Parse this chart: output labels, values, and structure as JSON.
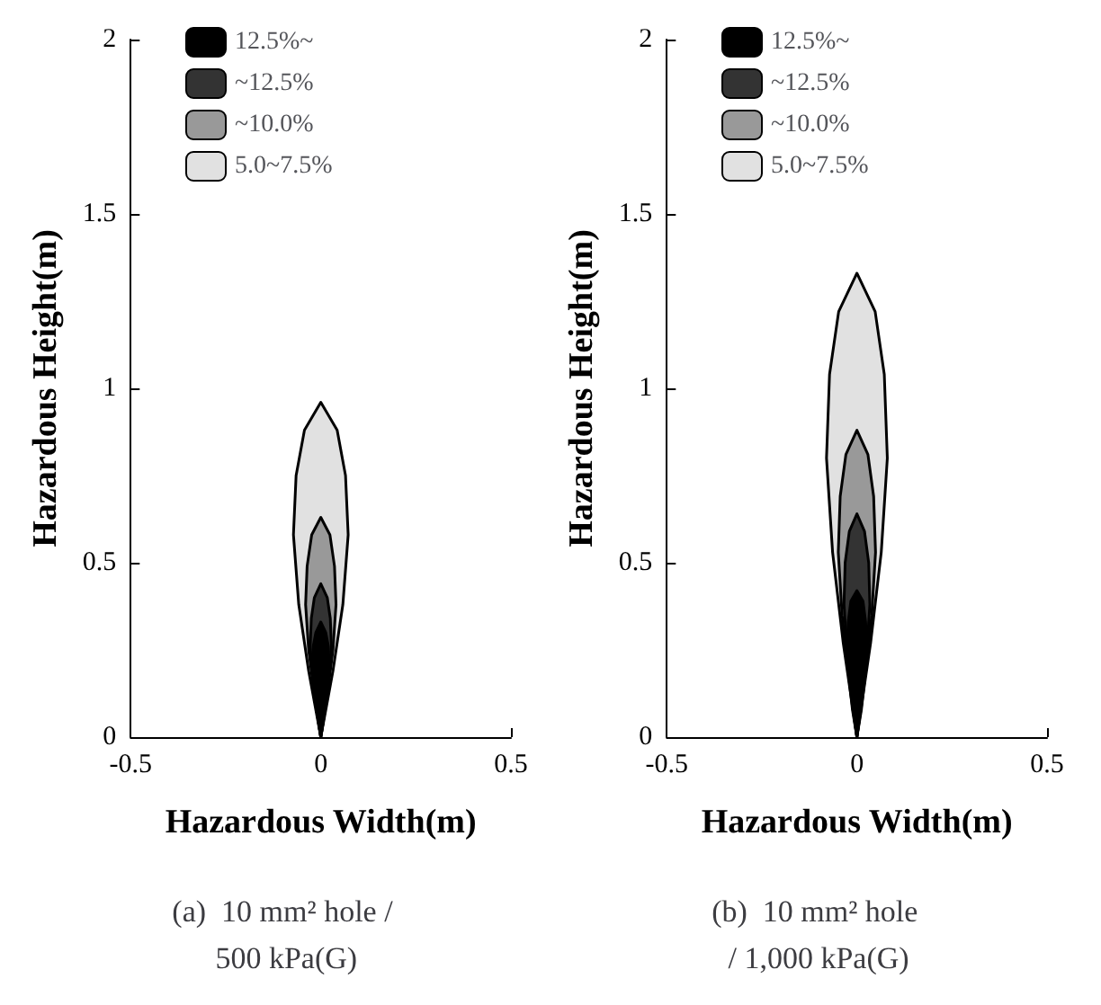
{
  "chart_data": [
    {
      "type": "area",
      "title": "(a)  10 mm² hole / 500 kPa(G)",
      "xlabel": "Hazardous Width(m)",
      "ylabel": "Hazardous Height(m)",
      "xlim": [
        -0.5,
        0.5
      ],
      "xticks": [
        -0.5,
        0,
        0.5
      ],
      "ylim": [
        0,
        2
      ],
      "yticks": [
        0,
        0.5,
        1,
        1.5,
        2
      ],
      "grid": false,
      "legend": "top",
      "series": [
        {
          "name": "12.5%~",
          "color": "#000000",
          "x": [
            0,
            0.01,
            0.018,
            0.022,
            0.02,
            0.013,
            0,
            -0.013,
            -0.02,
            -0.022,
            -0.018,
            -0.01,
            0
          ],
          "values": [
            0,
            0.07,
            0.13,
            0.2,
            0.26,
            0.3,
            0.33,
            0.3,
            0.26,
            0.2,
            0.13,
            0.07,
            0
          ]
        },
        {
          "name": "~12.5%",
          "color": "#333333",
          "x": [
            0,
            0.013,
            0.022,
            0.028,
            0.025,
            0.017,
            0,
            -0.017,
            -0.025,
            -0.028,
            -0.022,
            -0.013,
            0
          ],
          "values": [
            0,
            0.09,
            0.18,
            0.26,
            0.34,
            0.4,
            0.44,
            0.4,
            0.34,
            0.26,
            0.18,
            0.09,
            0
          ]
        },
        {
          "name": "~10.0%",
          "color": "#999999",
          "x": [
            0,
            0.018,
            0.032,
            0.04,
            0.036,
            0.024,
            0,
            -0.024,
            -0.036,
            -0.04,
            -0.032,
            -0.018,
            0
          ],
          "values": [
            0,
            0.13,
            0.25,
            0.38,
            0.49,
            0.58,
            0.63,
            0.58,
            0.49,
            0.38,
            0.25,
            0.13,
            0
          ]
        },
        {
          "name": "5.0~7.5%",
          "color": "#e1e1e1",
          "x": [
            0,
            0.032,
            0.058,
            0.072,
            0.065,
            0.043,
            0,
            -0.043,
            -0.065,
            -0.072,
            -0.058,
            -0.032,
            0
          ],
          "values": [
            0,
            0.19,
            0.38,
            0.58,
            0.75,
            0.88,
            0.96,
            0.88,
            0.75,
            0.58,
            0.38,
            0.19,
            0
          ]
        }
      ]
    },
    {
      "type": "area",
      "title": "(b)  10 mm² hole / 1,000 kPa(G)",
      "xlabel": "Hazardous Width(m)",
      "ylabel": "Hazardous Height(m)",
      "xlim": [
        -0.5,
        0.5
      ],
      "xticks": [
        -0.5,
        0,
        0.5
      ],
      "ylim": [
        0,
        2
      ],
      "yticks": [
        0,
        0.5,
        1,
        1.5,
        2
      ],
      "grid": false,
      "legend": "top",
      "series": [
        {
          "name": "12.5%~",
          "color": "#000000",
          "x": [
            0,
            0.012,
            0.021,
            0.026,
            0.023,
            0.016,
            0,
            -0.016,
            -0.023,
            -0.026,
            -0.021,
            -0.012,
            0
          ],
          "values": [
            0,
            0.08,
            0.17,
            0.25,
            0.33,
            0.39,
            0.42,
            0.39,
            0.33,
            0.25,
            0.17,
            0.08,
            0
          ]
        },
        {
          "name": "~12.5%",
          "color": "#333333",
          "x": [
            0,
            0.015,
            0.027,
            0.034,
            0.031,
            0.02,
            0,
            -0.02,
            -0.031,
            -0.034,
            -0.027,
            -0.015,
            0
          ],
          "values": [
            0,
            0.13,
            0.26,
            0.38,
            0.5,
            0.59,
            0.64,
            0.59,
            0.5,
            0.38,
            0.26,
            0.13,
            0
          ]
        },
        {
          "name": "~10.0%",
          "color": "#999999",
          "x": [
            0,
            0.022,
            0.039,
            0.049,
            0.044,
            0.029,
            0,
            -0.029,
            -0.044,
            -0.049,
            -0.039,
            -0.022,
            0
          ],
          "values": [
            0,
            0.18,
            0.35,
            0.53,
            0.69,
            0.81,
            0.88,
            0.81,
            0.69,
            0.53,
            0.35,
            0.18,
            0
          ]
        },
        {
          "name": "5.0~7.5%",
          "color": "#e1e1e1",
          "x": [
            0,
            0.036,
            0.064,
            0.08,
            0.072,
            0.048,
            0,
            -0.048,
            -0.072,
            -0.08,
            -0.064,
            -0.036,
            0
          ],
          "values": [
            0,
            0.27,
            0.53,
            0.8,
            1.04,
            1.22,
            1.33,
            1.22,
            1.04,
            0.8,
            0.53,
            0.27,
            0
          ]
        }
      ]
    }
  ]
}
